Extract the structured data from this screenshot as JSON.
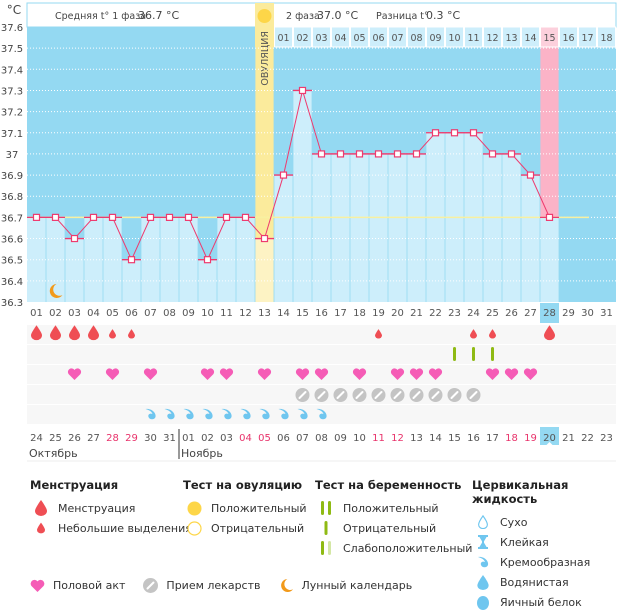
{
  "header": {
    "phase1_label": "Средняя t° 1 фаза",
    "phase1_value": "36.7 °C",
    "phase2_label": "2 фаза",
    "phase2_value": "37.0 °C",
    "diff_label": "Разница t°",
    "diff_value": "0.3 °C",
    "ovulation_label": "ОВУЛЯЦИЯ"
  },
  "chart_data": {
    "type": "line",
    "title": "",
    "ylabel": "°C",
    "ylim": [
      36.3,
      37.6
    ],
    "yticks": [
      "36.3",
      "36.4",
      "36.5",
      "36.6",
      "36.7",
      "36.8",
      "36.9",
      "37",
      "37.1",
      "37.2",
      "37.3",
      "37.4",
      "37.5",
      "37.6"
    ],
    "coverline": 36.7,
    "cycle_days": [
      "01",
      "02",
      "03",
      "04",
      "05",
      "06",
      "07",
      "08",
      "09",
      "10",
      "11",
      "12",
      "13",
      "14",
      "15",
      "16",
      "17",
      "18",
      "19",
      "20",
      "21",
      "22",
      "23",
      "24",
      "25",
      "26",
      "27",
      "28",
      "29",
      "30",
      "31"
    ],
    "current_day": "28",
    "ovulation_day": 13,
    "phase2_days": [
      "01",
      "02",
      "03",
      "04",
      "05",
      "06",
      "07",
      "08",
      "09",
      "10",
      "11",
      "12",
      "13",
      "14",
      "15",
      "16",
      "17",
      "18"
    ],
    "phase2_highlight": "15",
    "series": [
      {
        "name": "Базальная температура",
        "values": [
          36.7,
          36.7,
          36.6,
          36.7,
          36.7,
          36.5,
          36.7,
          36.7,
          36.7,
          36.5,
          36.7,
          36.7,
          36.6,
          36.9,
          37.3,
          37.0,
          37.0,
          37.0,
          37.0,
          37.0,
          37.0,
          37.1,
          37.1,
          37.1,
          37.0,
          37.0,
          36.9,
          36.7
        ]
      }
    ],
    "dates": [
      "24",
      "25",
      "26",
      "27",
      "28",
      "29",
      "30",
      "31",
      "01",
      "02",
      "03",
      "04",
      "05",
      "06",
      "07",
      "08",
      "09",
      "10",
      "11",
      "12",
      "13",
      "14",
      "15",
      "16",
      "17",
      "18",
      "19",
      "20",
      "21",
      "22",
      "23"
    ],
    "weekend_dates_idx": [
      4,
      5,
      11,
      12,
      18,
      19,
      25,
      26
    ],
    "today_idx": 27,
    "months": [
      {
        "label": "Октябрь",
        "start_idx": 0
      },
      {
        "label": "Ноябрь",
        "start_idx": 8
      }
    ],
    "menstruation": {
      "heavy": [
        1,
        2,
        3,
        4,
        28
      ],
      "light": [
        5,
        6,
        19,
        24,
        25
      ]
    },
    "pregnancy_test_negative": [
      23,
      24,
      25
    ],
    "intercourse": [
      3,
      5,
      7,
      10,
      11,
      13,
      15,
      16,
      18,
      20,
      21,
      22,
      25,
      26,
      27
    ],
    "medication": [
      15,
      16,
      17,
      18,
      19,
      20,
      21,
      22,
      23,
      24
    ],
    "cervical_creamy": [
      7,
      8,
      9,
      10,
      11,
      12,
      13,
      14,
      15,
      16
    ],
    "moon": [
      2
    ]
  },
  "legend": {
    "menstruation": {
      "title": "Менструация",
      "items": [
        "Менструация",
        "Небольшие выделения"
      ]
    },
    "ovulation_test": {
      "title": "Тест на овуляцию",
      "items": [
        "Положительный",
        "Отрицательный"
      ]
    },
    "pregnancy_test": {
      "title": "Тест на беременность",
      "items": [
        "Положительный",
        "Отрицательный",
        "Слабоположительный"
      ]
    },
    "cervical": {
      "title": "Цервикальная жидкость",
      "items": [
        "Сухо",
        "Клейкая",
        "Кремообразная",
        "Водянистая",
        "Яичный белок"
      ]
    },
    "bottom": [
      "Половой акт",
      "Прием лекарств",
      "Лунный календарь"
    ]
  },
  "colors": {
    "sky": "#94d9f2",
    "bar": "#cdeefb",
    "line": "#ee3a6e",
    "ovulation": "#fbeb9c",
    "highlight": "#fbb3c7",
    "blood": "#ef4e54",
    "heart": "#f55cb6",
    "pill": "#c4c4c4",
    "test": "#8fba14",
    "fluid": "#6fc6ef",
    "moon": "#f29a1b",
    "weekend": "#e8336b"
  }
}
